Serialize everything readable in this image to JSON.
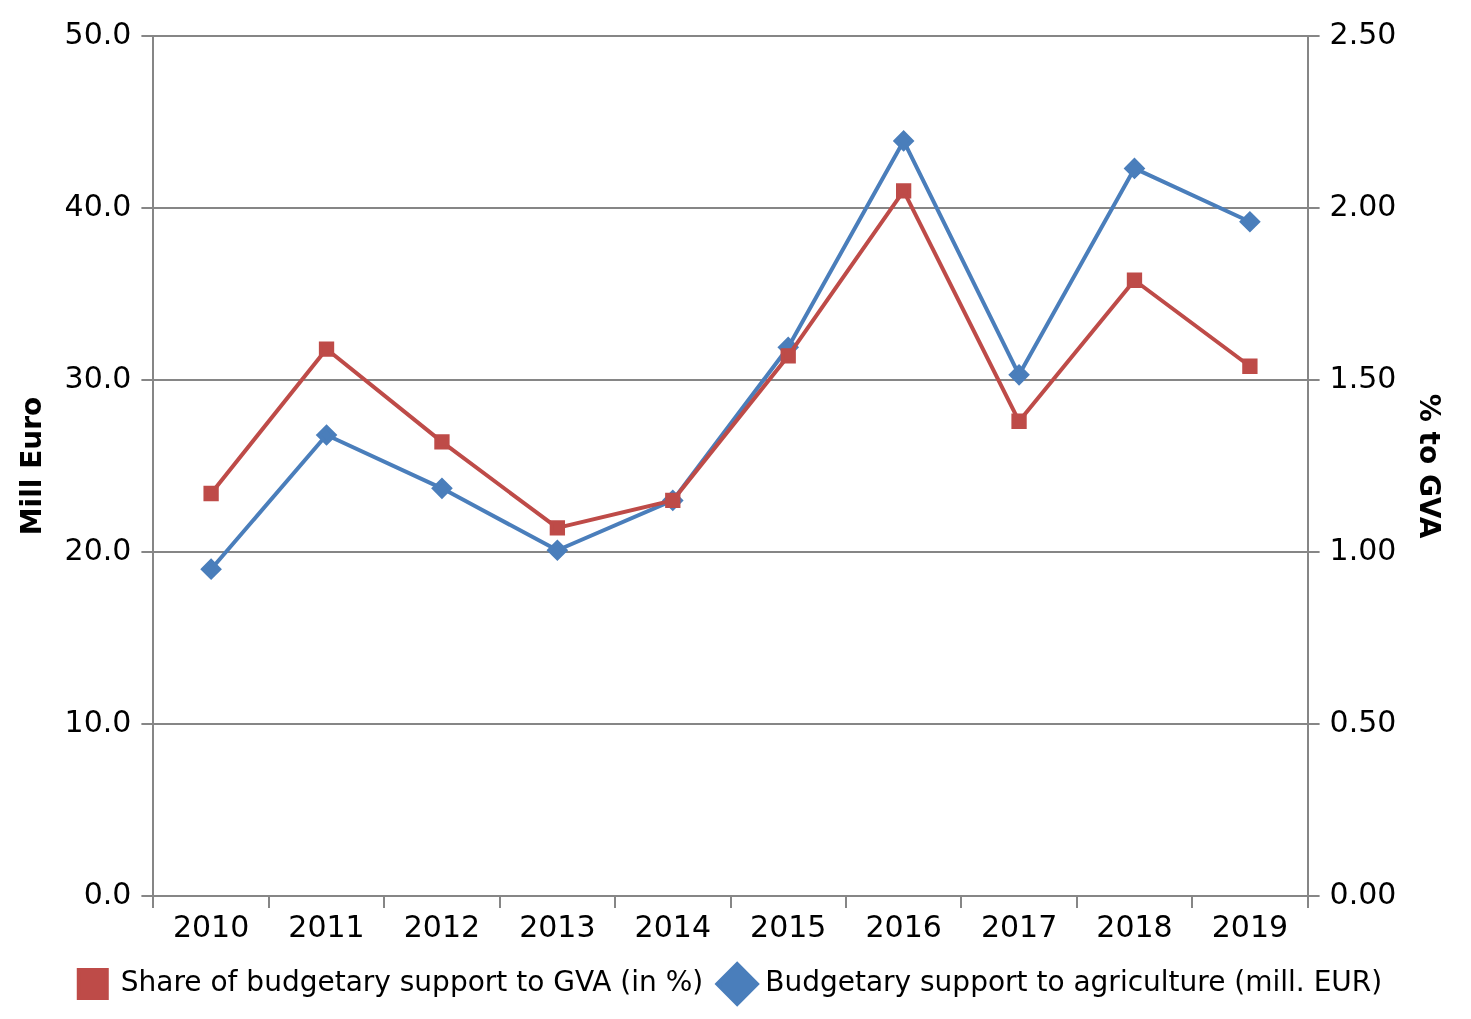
{
  "chart_data": {
    "type": "line",
    "ylabel": "Mill Euro",
    "y2label": "% to GVA",
    "categories": [
      "2010",
      "2011",
      "2012",
      "2013",
      "2014",
      "2015",
      "2016",
      "2017",
      "2018",
      "2019"
    ],
    "series": [
      {
        "name": "Budgetary support to agriculture (mill. EUR)",
        "color": "#4a7ebb",
        "marker": "diamond",
        "values": [
          19.0,
          26.8,
          23.7,
          20.1,
          23.0,
          31.9,
          43.9,
          30.3,
          42.3,
          39.2
        ]
      },
      {
        "name": "Share of budgetary support to GVA (in %)",
        "color": "#be4b48",
        "marker": "square",
        "axis": "y2",
        "values": [
          1.17,
          1.59,
          1.32,
          1.07,
          1.15,
          1.57,
          2.05,
          1.38,
          1.79,
          1.54
        ]
      }
    ],
    "ylim": [
      0,
      50
    ],
    "yticks": [
      {
        "value": 0,
        "label": "0.0"
      },
      {
        "value": 10,
        "label": "10.0"
      },
      {
        "value": 20,
        "label": "20.0"
      },
      {
        "value": 30,
        "label": "30.0"
      },
      {
        "value": 40,
        "label": "40.0"
      },
      {
        "value": 50,
        "label": "50.0"
      }
    ],
    "y2lim": [
      0,
      2.5
    ],
    "y2ticks": [
      {
        "value": 0,
        "label": "0.00"
      },
      {
        "value": 0.5,
        "label": "0.50"
      },
      {
        "value": 1,
        "label": "1.00"
      },
      {
        "value": 1.5,
        "label": "1.50"
      },
      {
        "value": 2,
        "label": "2.00"
      },
      {
        "value": 2.5,
        "label": "2.50"
      }
    ],
    "grid": "y",
    "legend": "bottom",
    "line_style": "solid"
  }
}
